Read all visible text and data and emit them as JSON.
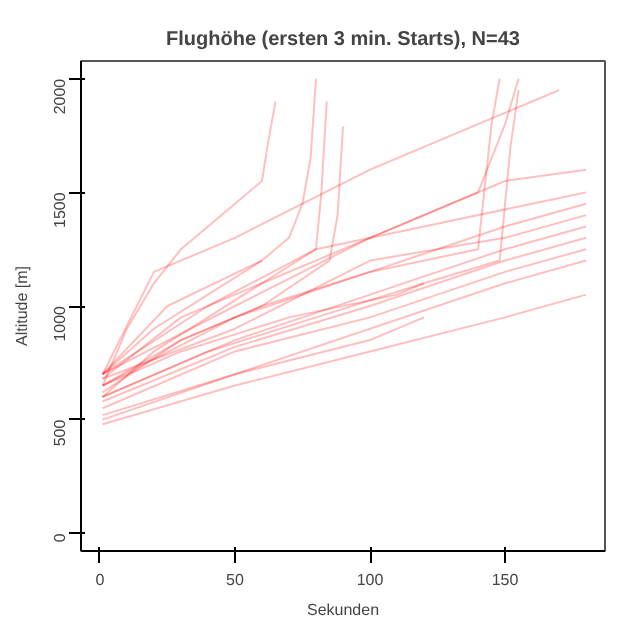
{
  "chart_data": {
    "type": "line",
    "title": "Flughöhe (ersten 3 min. Starts), N=43",
    "xlabel": "Sekunden",
    "ylabel": "Altitude [m]",
    "xlim": [
      -7,
      187
    ],
    "ylim": [
      -78,
      2078
    ],
    "xticks": [
      0,
      50,
      100,
      150
    ],
    "yticks": [
      0,
      500,
      1000,
      1500,
      2000
    ],
    "grid": false,
    "series": [
      {
        "color": "#ff0000",
        "x": [
          1,
          10,
          20,
          30,
          40,
          50,
          60,
          62,
          65
        ],
        "values": [
          650,
          900,
          1100,
          1250,
          1350,
          1450,
          1550,
          1700,
          1900
        ]
      },
      {
        "color": "#ff0000",
        "x": [
          1,
          20,
          40,
          60,
          70,
          75,
          78,
          80
        ],
        "values": [
          700,
          900,
          1050,
          1200,
          1300,
          1450,
          1650,
          2000
        ]
      },
      {
        "color": "#ff0000",
        "x": [
          1,
          20,
          40,
          60,
          80,
          82,
          84
        ],
        "values": [
          600,
          800,
          950,
          1100,
          1250,
          1500,
          1900
        ]
      },
      {
        "color": "#ff0000",
        "x": [
          1,
          30,
          60,
          85,
          88,
          90
        ],
        "values": [
          620,
          850,
          1000,
          1200,
          1400,
          1790
        ]
      },
      {
        "color": "#ff0000",
        "x": [
          1,
          20,
          50,
          100,
          140,
          170
        ],
        "values": [
          700,
          1150,
          1300,
          1600,
          1800,
          1950
        ]
      },
      {
        "color": "#ff0000",
        "x": [
          1,
          30,
          60,
          100,
          140,
          150,
          155
        ],
        "values": [
          680,
          950,
          1100,
          1300,
          1500,
          1800,
          2000
        ]
      },
      {
        "color": "#ff0000",
        "x": [
          1,
          30,
          60,
          100,
          140,
          145,
          148
        ],
        "values": [
          650,
          850,
          1000,
          1150,
          1250,
          1800,
          2000
        ]
      },
      {
        "color": "#ff0000",
        "x": [
          1,
          40,
          80,
          120,
          148,
          152,
          155
        ],
        "values": [
          600,
          800,
          950,
          1100,
          1200,
          1700,
          1950
        ]
      },
      {
        "color": "#ff0000",
        "x": [
          1,
          50,
          100,
          150,
          180
        ],
        "values": [
          700,
          1000,
          1300,
          1550,
          1600
        ]
      },
      {
        "color": "#ff0000",
        "x": [
          1,
          50,
          100,
          150,
          180
        ],
        "values": [
          650,
          950,
          1150,
          1350,
          1450
        ]
      },
      {
        "color": "#ff0000",
        "x": [
          1,
          50,
          100,
          150,
          180
        ],
        "values": [
          600,
          850,
          1050,
          1250,
          1350
        ]
      },
      {
        "color": "#ff0000",
        "x": [
          1,
          50,
          100,
          150,
          180
        ],
        "values": [
          550,
          800,
          950,
          1150,
          1250
        ]
      },
      {
        "color": "#ff0000",
        "x": [
          1,
          50,
          100,
          150,
          180
        ],
        "values": [
          500,
          700,
          900,
          1100,
          1200
        ]
      },
      {
        "color": "#ff0000",
        "x": [
          1,
          50,
          100,
          150,
          180
        ],
        "values": [
          480,
          650,
          800,
          950,
          1050
        ]
      },
      {
        "color": "#ff0000",
        "x": [
          1,
          50,
          100,
          120
        ],
        "values": [
          520,
          700,
          850,
          950
        ]
      },
      {
        "color": "#ff0000",
        "x": [
          1,
          50,
          100,
          150,
          180
        ],
        "values": [
          680,
          900,
          1200,
          1300,
          1400
        ]
      },
      {
        "color": "#ff0000",
        "x": [
          1,
          30,
          70,
          110,
          120
        ],
        "values": [
          650,
          800,
          950,
          1050,
          1100
        ]
      },
      {
        "color": "#ff0000",
        "x": [
          1,
          40,
          80,
          120,
          160,
          180
        ],
        "values": [
          700,
          1000,
          1250,
          1350,
          1450,
          1500
        ]
      },
      {
        "color": "#ff0000",
        "x": [
          1,
          25,
          60
        ],
        "values": [
          700,
          1000,
          1200
        ]
      },
      {
        "color": "#ff0000",
        "x": [
          1,
          50,
          100,
          150,
          180
        ],
        "values": [
          580,
          820,
          1000,
          1200,
          1300
        ]
      }
    ]
  }
}
